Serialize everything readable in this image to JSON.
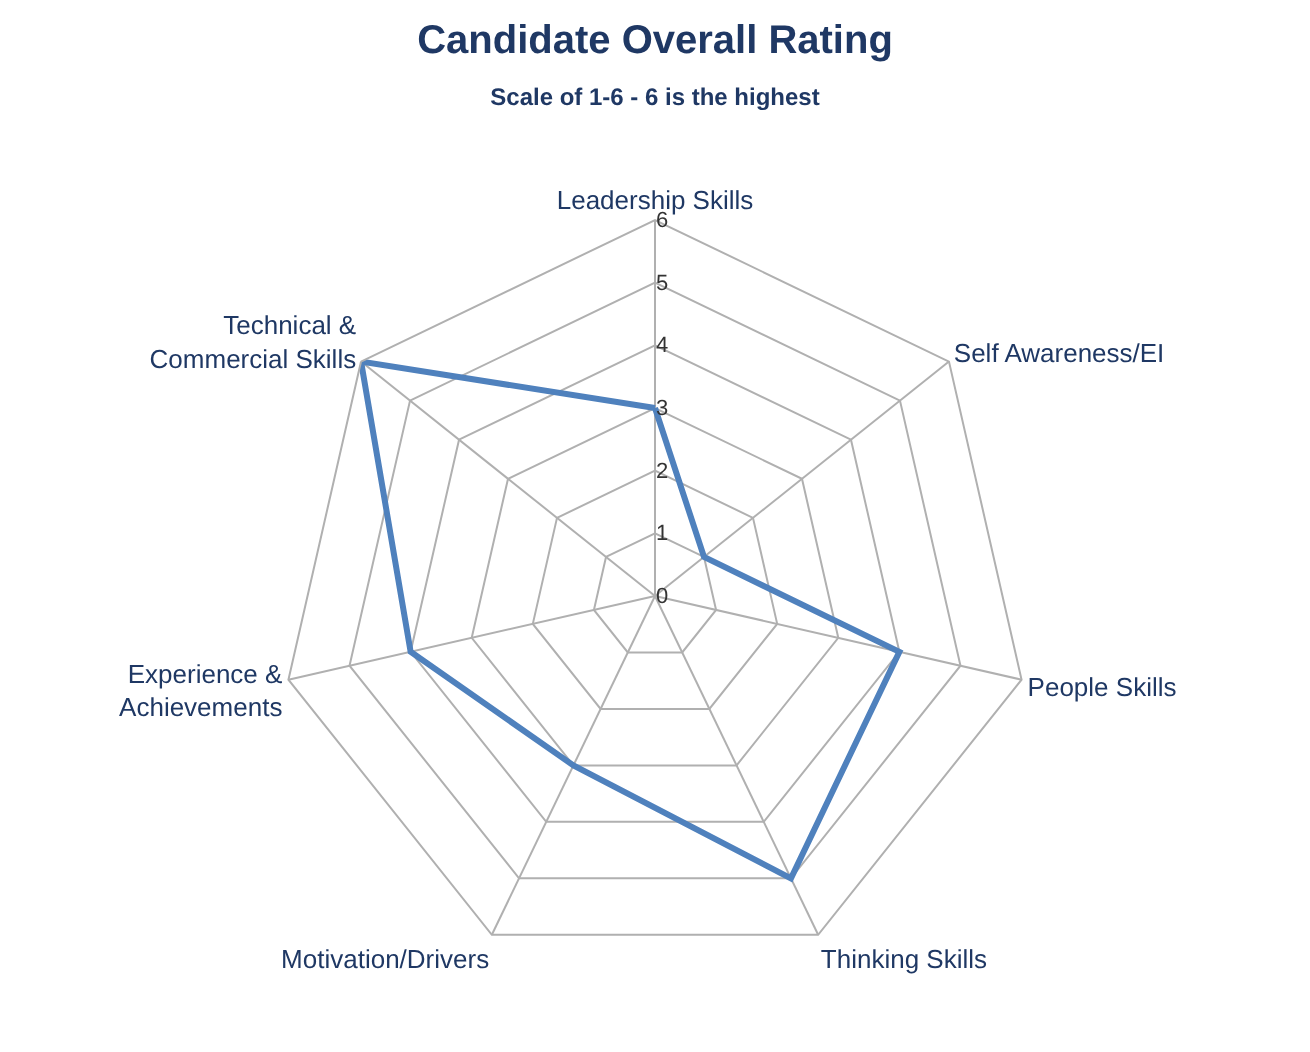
{
  "chart_data": {
    "type": "radar",
    "title": "Candidate Overall Rating",
    "subtitle": "Scale of 1-6 - 6 is the highest",
    "categories": [
      "Leadership Skills",
      "Self Awareness/EI",
      "People Skills",
      "Thinking Skills",
      "Motivation/Drivers",
      "Experience &\nAchievements",
      "Technical &\nCommercial Skills"
    ],
    "series": [
      {
        "color": "#4f81bd",
        "values": [
          3,
          1,
          4,
          5,
          3,
          4,
          6
        ]
      }
    ],
    "ylim": [
      0,
      6
    ],
    "yticks": [
      0,
      1,
      2,
      3,
      4,
      5,
      6
    ],
    "grid": true,
    "marker": "none",
    "line_style": "solid"
  }
}
